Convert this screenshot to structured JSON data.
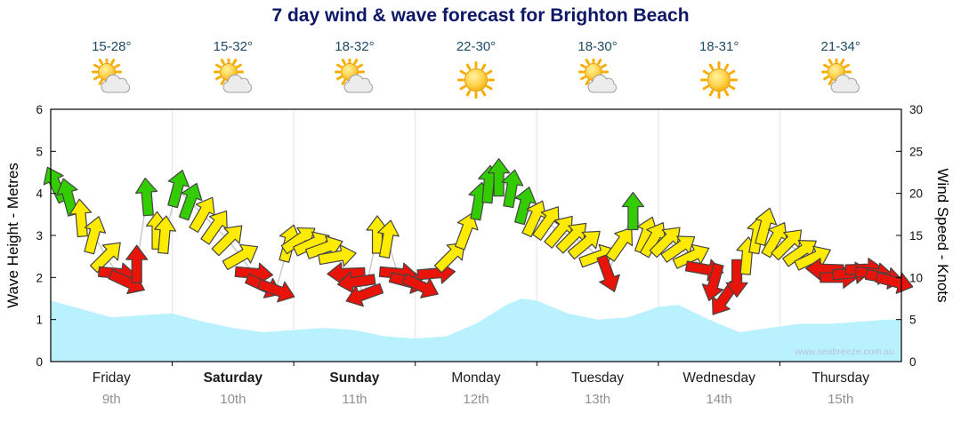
{
  "title": "7 day wind & wave forecast for Brighton Beach",
  "watermark": "www.seabreeze.com.au",
  "days": [
    {
      "name": "Friday",
      "date": "9th",
      "temp": "15-28°",
      "icon": "partly-cloudy",
      "bold": false
    },
    {
      "name": "Saturday",
      "date": "10th",
      "temp": "15-32°",
      "icon": "partly-cloudy",
      "bold": true
    },
    {
      "name": "Sunday",
      "date": "11th",
      "temp": "18-32°",
      "icon": "partly-cloudy",
      "bold": true
    },
    {
      "name": "Monday",
      "date": "12th",
      "temp": "22-30°",
      "icon": "sunny",
      "bold": false
    },
    {
      "name": "Tuesday",
      "date": "13th",
      "temp": "18-30°",
      "icon": "partly-cloudy",
      "bold": false
    },
    {
      "name": "Wednesday",
      "date": "14th",
      "temp": "18-31°",
      "icon": "sunny",
      "bold": false
    },
    {
      "name": "Thursday",
      "date": "15th",
      "temp": "21-34°",
      "icon": "partly-cloudy",
      "bold": false
    }
  ],
  "chart_data": {
    "type": "line",
    "title": "7 day wind & wave forecast for Brighton Beach",
    "x_categories": [
      "Friday 9th",
      "Saturday 10th",
      "Sunday 11th",
      "Monday 12th",
      "Tuesday 13th",
      "Wednesday 14th",
      "Thursday 15th"
    ],
    "x_range_hours": [
      0,
      168
    ],
    "left_axis": {
      "label": "Wave Height - Metres",
      "min": 0,
      "max": 6,
      "ticks": [
        0,
        1,
        2,
        3,
        4,
        5,
        6
      ]
    },
    "right_axis": {
      "label": "Wind Speed - Knots",
      "min": 0,
      "max": 30,
      "ticks": [
        0,
        5,
        10,
        15,
        20,
        25,
        30
      ]
    },
    "grid": {
      "vertical_day_lines": true,
      "horizontal": false
    },
    "colors": {
      "wind_strong": "#33cc00",
      "wind_moderate": "#ffeb00",
      "wind_light": "#e81309",
      "arrow_outline": "#444444",
      "wave_fill": "#b9f1ff",
      "connector_line": "#c8c8c8"
    },
    "series": [
      {
        "name": "Wind Speed",
        "unit": "knots",
        "style": "arrows",
        "point_format": [
          "hours_from_start",
          "knots",
          "direction_deg",
          "strength_color(g|y|r)"
        ],
        "points": [
          [
            1,
            21,
            -25,
            "g"
          ],
          [
            3.5,
            19.5,
            -15,
            "g"
          ],
          [
            6,
            17,
            -5,
            "y"
          ],
          [
            8.5,
            15,
            15,
            "y"
          ],
          [
            11,
            12.5,
            45,
            "y"
          ],
          [
            13,
            10.5,
            95,
            "r"
          ],
          [
            15,
            9.5,
            115,
            "r"
          ],
          [
            17,
            11.5,
            0,
            "r"
          ],
          [
            19,
            19.5,
            -5,
            "g"
          ],
          [
            21,
            15.5,
            0,
            "y"
          ],
          [
            22.5,
            15,
            5,
            "y"
          ],
          [
            25,
            20.5,
            15,
            "g"
          ],
          [
            27.5,
            19,
            20,
            "g"
          ],
          [
            30,
            17.5,
            30,
            "y"
          ],
          [
            32.5,
            16,
            35,
            "y"
          ],
          [
            35,
            14.5,
            45,
            "y"
          ],
          [
            37.5,
            12.5,
            60,
            "y"
          ],
          [
            40,
            10.5,
            95,
            "r"
          ],
          [
            42,
            9,
            115,
            "r"
          ],
          [
            44.5,
            8.5,
            110,
            "r"
          ],
          [
            47,
            14,
            15,
            "y"
          ],
          [
            49,
            14.5,
            55,
            "y"
          ],
          [
            51.5,
            14,
            65,
            "y"
          ],
          [
            54,
            13.5,
            70,
            "y"
          ],
          [
            56.5,
            12.5,
            80,
            "y"
          ],
          [
            58.5,
            10.5,
            268,
            "r"
          ],
          [
            60.5,
            9.5,
            262,
            "r"
          ],
          [
            62,
            8,
            250,
            "r"
          ],
          [
            64.5,
            15,
            0,
            "y"
          ],
          [
            66.5,
            14.5,
            10,
            "y"
          ],
          [
            68.5,
            10.5,
            95,
            "r"
          ],
          [
            70.5,
            9.5,
            105,
            "r"
          ],
          [
            73,
            9,
            115,
            "r"
          ],
          [
            76,
            10.5,
            85,
            "r"
          ],
          [
            79,
            12.5,
            45,
            "y"
          ],
          [
            82,
            15.5,
            20,
            "y"
          ],
          [
            84.5,
            19,
            10,
            "g"
          ],
          [
            86.5,
            21,
            5,
            "g"
          ],
          [
            88.5,
            21.8,
            0,
            "g"
          ],
          [
            91,
            20.5,
            10,
            "g"
          ],
          [
            93.5,
            18.5,
            15,
            "g"
          ],
          [
            95.5,
            17,
            25,
            "y"
          ],
          [
            98,
            16.5,
            35,
            "y"
          ],
          [
            100.5,
            15.5,
            40,
            "y"
          ],
          [
            103,
            14.8,
            45,
            "y"
          ],
          [
            105.5,
            14,
            50,
            "y"
          ],
          [
            108,
            12.5,
            70,
            "y"
          ],
          [
            110,
            10.5,
            160,
            "r"
          ],
          [
            112.5,
            14,
            35,
            "y"
          ],
          [
            115,
            17.8,
            0,
            "g"
          ],
          [
            117.5,
            15,
            20,
            "y"
          ],
          [
            119,
            14.5,
            30,
            "y"
          ],
          [
            121.5,
            14.3,
            45,
            "y"
          ],
          [
            124,
            13.5,
            55,
            "y"
          ],
          [
            126.5,
            12.5,
            65,
            "y"
          ],
          [
            129,
            11,
            100,
            "r"
          ],
          [
            131,
            9.5,
            195,
            "r"
          ],
          [
            133,
            7.5,
            215,
            "r"
          ],
          [
            135.5,
            10,
            180,
            "r"
          ],
          [
            137.5,
            12.5,
            5,
            "y"
          ],
          [
            139.5,
            15,
            10,
            "y"
          ],
          [
            141,
            16,
            15,
            "y"
          ],
          [
            143,
            14.5,
            30,
            "y"
          ],
          [
            145.5,
            14,
            45,
            "y"
          ],
          [
            148,
            13,
            55,
            "y"
          ],
          [
            150.5,
            12.3,
            65,
            "y"
          ],
          [
            153,
            11,
            272,
            "r"
          ],
          [
            155.5,
            10,
            90,
            "r"
          ],
          [
            158,
            10.5,
            85,
            "r"
          ],
          [
            160.5,
            11,
            88,
            "r"
          ],
          [
            162.5,
            10.5,
            95,
            "r"
          ],
          [
            164.5,
            10,
            100,
            "r"
          ],
          [
            166.5,
            9.5,
            105,
            "r"
          ]
        ]
      },
      {
        "name": "Wave Height",
        "unit": "metres",
        "style": "area",
        "point_format": [
          "hours_from_start",
          "metres"
        ],
        "points": [
          [
            0,
            1.45
          ],
          [
            6,
            1.25
          ],
          [
            12,
            1.05
          ],
          [
            18,
            1.1
          ],
          [
            24,
            1.15
          ],
          [
            30,
            0.95
          ],
          [
            36,
            0.8
          ],
          [
            42,
            0.7
          ],
          [
            48,
            0.75
          ],
          [
            54,
            0.8
          ],
          [
            60,
            0.75
          ],
          [
            66,
            0.6
          ],
          [
            72,
            0.55
          ],
          [
            78,
            0.6
          ],
          [
            84,
            0.9
          ],
          [
            90,
            1.35
          ],
          [
            93,
            1.5
          ],
          [
            96,
            1.45
          ],
          [
            102,
            1.15
          ],
          [
            108,
            1.0
          ],
          [
            114,
            1.05
          ],
          [
            120,
            1.3
          ],
          [
            124,
            1.35
          ],
          [
            130,
            1.0
          ],
          [
            136,
            0.7
          ],
          [
            142,
            0.8
          ],
          [
            148,
            0.9
          ],
          [
            154,
            0.9
          ],
          [
            160,
            0.95
          ],
          [
            165,
            1.0
          ],
          [
            168,
            1.0
          ]
        ]
      }
    ]
  }
}
